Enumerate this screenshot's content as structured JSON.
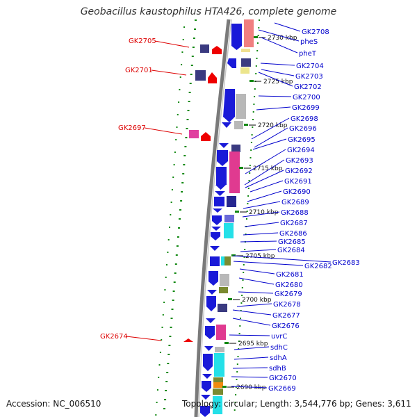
{
  "title": "Geobacillus kaustophilus HTA426, complete genome",
  "accession": "Accession: NC_006510",
  "topology": "Topology: circular; Length: 3,544,776 bp; Genes: 3,611",
  "colors": {
    "left_label": "#dd0000",
    "right_label": "#0000cc",
    "gene_arrow": "#0a0ad8",
    "backbone": "#888888",
    "tick_green": "#118811"
  },
  "kbp_ticks": [
    "2730 kbp",
    "2725 kbp",
    "2720 kbp",
    "2715 kbp",
    "2710 kbp",
    "2705 kbp",
    "2700 kbp",
    "2695 kbp",
    "2690 kbp"
  ],
  "left_genes": [
    "GK2705",
    "GK2701",
    "GK2697",
    "GK2674"
  ],
  "right_genes": [
    "GK2708",
    "pheS",
    "pheT",
    "GK2704",
    "GK2703",
    "GK2702",
    "GK2700",
    "GK2699",
    "GK2698",
    "GK2696",
    "GK2695",
    "GK2694",
    "GK2693",
    "GK2692",
    "GK2691",
    "GK2690",
    "GK2689",
    "GK2688",
    "GK2687",
    "GK2686",
    "GK2685",
    "GK2684",
    "GK2683",
    "GK2682",
    "GK2681",
    "GK2680",
    "GK2679",
    "GK2678",
    "GK2677",
    "GK2676",
    "uvrC",
    "sdhC",
    "sdhA",
    "sdhB",
    "GK2670",
    "GK2669"
  ]
}
